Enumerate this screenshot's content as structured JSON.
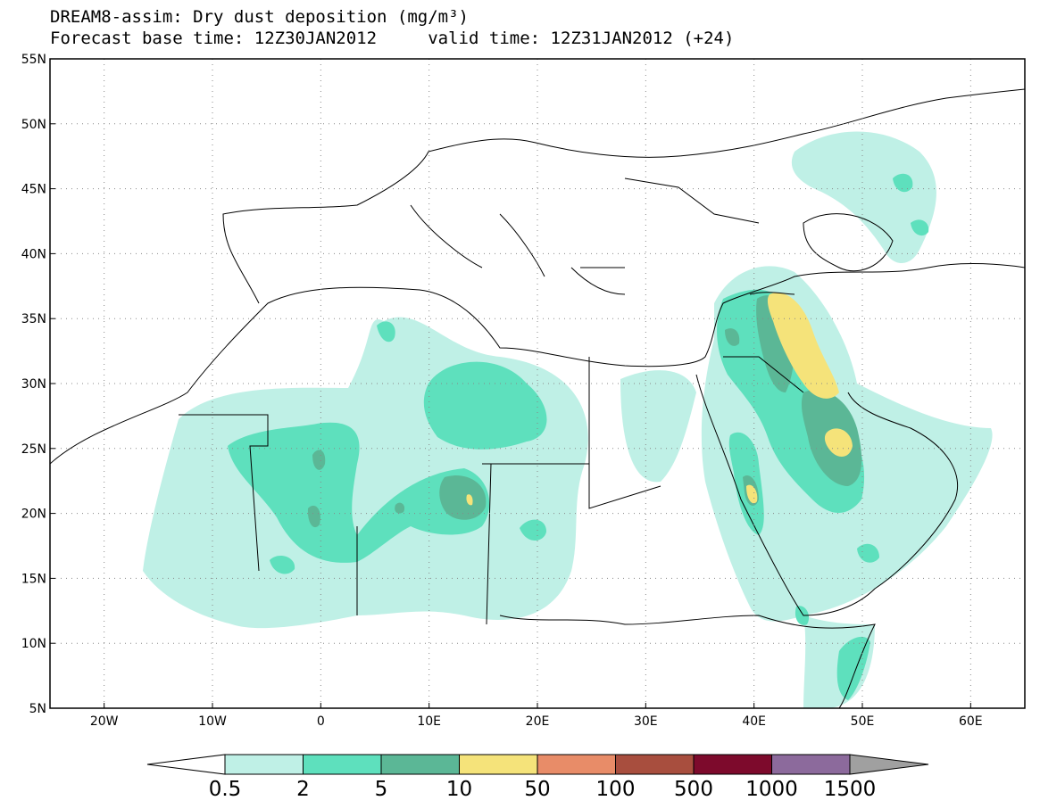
{
  "title_line1": "DREAM8-assim: Dry dust deposition (mg/m³)",
  "title_line2": "Forecast base time: 12Z30JAN2012     valid time: 12Z31JAN2012 (+24)",
  "map": {
    "lon_range": [
      -25,
      65
    ],
    "lat_range": [
      5,
      55
    ],
    "grid": "dotted",
    "x_ticks": [
      "20W",
      "10W",
      "0",
      "10E",
      "20E",
      "30E",
      "40E",
      "50E",
      "60E"
    ],
    "y_ticks": [
      "55N",
      "50N",
      "45N",
      "40N",
      "35N",
      "30N",
      "25N",
      "20N",
      "15N",
      "10N",
      "5N"
    ]
  },
  "colorbar": {
    "labels": [
      "0.5",
      "2",
      "5",
      "10",
      "50",
      "100",
      "500",
      "1000",
      "1500"
    ],
    "colors": [
      "#ffffff",
      "#bff0e6",
      "#5ee0bd",
      "#5bb796",
      "#f5e37a",
      "#e88c68",
      "#a84e3e",
      "#7d0a2c",
      "#8c6a9c",
      "#a0a0a0"
    ]
  }
}
